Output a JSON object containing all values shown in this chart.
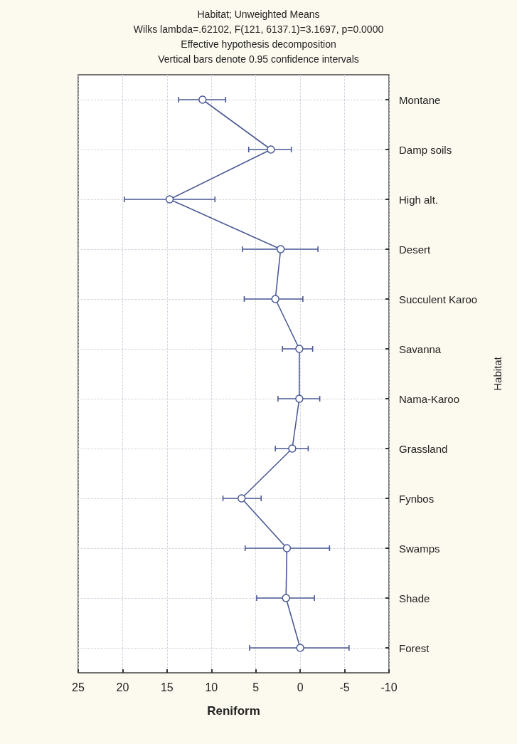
{
  "chart_data": {
    "type": "line",
    "title": "Habitat; Unweighted Means",
    "subtitle": "Wilks lambda=.62102, F(121, 6137.1)=3.1697, p=0.0000",
    "annotations": [
      "Effective hypothesis decomposition",
      "Vertical bars denote 0.95 confidence intervals"
    ],
    "xlabel": "Reniform",
    "ylabel": "Habitat",
    "orientation": "horizontal",
    "categories": [
      "Montane",
      "Damp soils",
      "High alt.",
      "Desert",
      "Succulent Karoo",
      "Savanna",
      "Nama-Karoo",
      "Grassland",
      "Fynbos",
      "Swamps",
      "Shade",
      "Forest"
    ],
    "series": [
      {
        "color": "#4b5a96",
        "values": [
          11.0,
          3.3,
          14.7,
          2.2,
          2.8,
          0.1,
          0.1,
          0.9,
          6.6,
          1.5,
          1.6,
          0
        ],
        "errors": [
          [
            8.4,
            13.7
          ],
          [
            1.0,
            5.8
          ],
          [
            9.6,
            19.8
          ],
          [
            -2.0,
            6.5
          ],
          [
            -0.3,
            6.3
          ],
          [
            -1.4,
            2.0
          ],
          [
            -2.2,
            2.5
          ],
          [
            -0.9,
            2.8
          ],
          [
            4.4,
            8.7
          ],
          [
            -3.3,
            6.2
          ],
          [
            -1.6,
            4.9
          ],
          [
            -5.5,
            5.7
          ]
        ]
      }
    ],
    "xlim": [
      25,
      -10
    ],
    "xticks": [
      25,
      20,
      15,
      10,
      5,
      0,
      -5,
      -10
    ],
    "grid": true,
    "marker": "circle",
    "line_style": "solid"
  }
}
